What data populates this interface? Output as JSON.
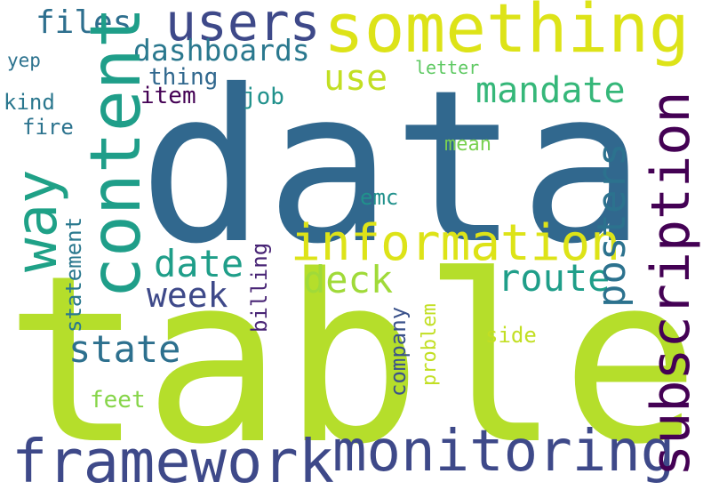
{
  "words": [
    {
      "text": "data",
      "color": "#31688e",
      "orientation": "horizontal"
    },
    {
      "text": "table",
      "color": "#b5de2b",
      "orientation": "horizontal"
    },
    {
      "text": "something",
      "color": "#dde318",
      "orientation": "horizontal"
    },
    {
      "text": "users",
      "color": "#3e4989",
      "orientation": "horizontal"
    },
    {
      "text": "files",
      "color": "#2e6f8e",
      "orientation": "horizontal"
    },
    {
      "text": "dashboards",
      "color": "#2a788e",
      "orientation": "horizontal"
    },
    {
      "text": "yep",
      "color": "#2c728e",
      "orientation": "horizontal"
    },
    {
      "text": "kind",
      "color": "#2a778e",
      "orientation": "horizontal"
    },
    {
      "text": "fire",
      "color": "#2c738e",
      "orientation": "horizontal"
    },
    {
      "text": "thing",
      "color": "#31688e",
      "orientation": "horizontal"
    },
    {
      "text": "item",
      "color": "#440154",
      "orientation": "horizontal"
    },
    {
      "text": "job",
      "color": "#21918c",
      "orientation": "horizontal"
    },
    {
      "text": "letter",
      "color": "#5ec962",
      "orientation": "horizontal"
    },
    {
      "text": "use",
      "color": "#c2df23",
      "orientation": "horizontal"
    },
    {
      "text": "mandate",
      "color": "#35b779",
      "orientation": "horizontal"
    },
    {
      "text": "mean",
      "color": "#7ad151",
      "orientation": "horizontal"
    },
    {
      "text": "emc",
      "color": "#21918c",
      "orientation": "horizontal"
    },
    {
      "text": "information",
      "color": "#dde318",
      "orientation": "horizontal"
    },
    {
      "text": "date",
      "color": "#1f9e89",
      "orientation": "horizontal"
    },
    {
      "text": "deck",
      "color": "#a0da39",
      "orientation": "horizontal"
    },
    {
      "text": "route",
      "color": "#1f9e89",
      "orientation": "horizontal"
    },
    {
      "text": "week",
      "color": "#3e4989",
      "orientation": "horizontal"
    },
    {
      "text": "state",
      "color": "#2d708e",
      "orientation": "horizontal"
    },
    {
      "text": "side",
      "color": "#c2df23",
      "orientation": "horizontal"
    },
    {
      "text": "feet",
      "color": "#86d549",
      "orientation": "horizontal"
    },
    {
      "text": "framework",
      "color": "#3e4989",
      "orientation": "horizontal"
    },
    {
      "text": "monitoring",
      "color": "#3e4989",
      "orientation": "horizontal"
    },
    {
      "text": "way",
      "color": "#1fa187",
      "orientation": "vertical"
    },
    {
      "text": "content",
      "color": "#1f9e89",
      "orientation": "vertical"
    },
    {
      "text": "subscription",
      "color": "#440154",
      "orientation": "vertical"
    },
    {
      "text": "posters",
      "color": "#2c728e",
      "orientation": "vertical"
    },
    {
      "text": "statement",
      "color": "#2a788e",
      "orientation": "vertical"
    },
    {
      "text": "billing",
      "color": "#482475",
      "orientation": "vertical"
    },
    {
      "text": "company",
      "color": "#3b528b",
      "orientation": "vertical"
    },
    {
      "text": "problem",
      "color": "#c2df23",
      "orientation": "vertical"
    }
  ]
}
